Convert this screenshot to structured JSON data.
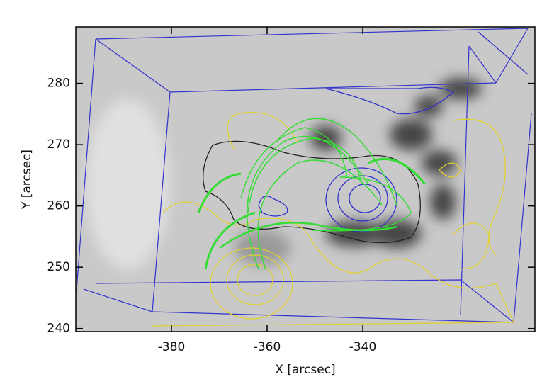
{
  "chart_data": {
    "type": "image",
    "x_label": "X [arcsec]",
    "y_label": "Y [arcsec]",
    "xlim": [
      -400,
      -304
    ],
    "ylim": [
      239.5,
      289.2
    ],
    "xticks": [
      -380,
      -360,
      -340
    ],
    "yticks": [
      240,
      250,
      260,
      270,
      280
    ]
  }
}
